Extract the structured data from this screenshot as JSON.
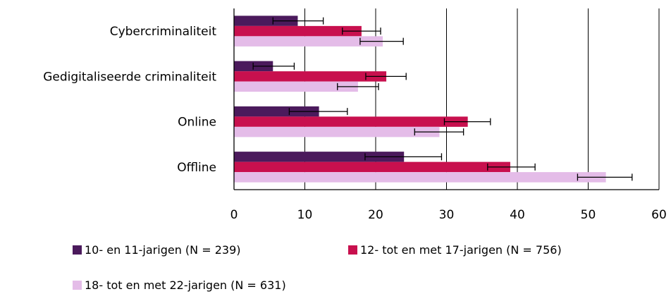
{
  "chart_data": {
    "type": "bar",
    "orientation": "horizontal",
    "categories": [
      "Cybercriminaliteit",
      "Gedigitaliseerde criminaliteit",
      "Online",
      "Offline"
    ],
    "series": [
      {
        "name": "10- en 11-jarigen (N = 239)",
        "color": "#4B1A5C",
        "values": [
          9,
          5.5,
          12,
          24
        ],
        "error_low": [
          5.5,
          2.7,
          7.8,
          18.5
        ],
        "error_high": [
          12.6,
          8.5,
          16,
          29.3
        ]
      },
      {
        "name": "12- tot en met 17-jarigen (N = 756)",
        "color": "#C8104E",
        "values": [
          18,
          21.5,
          33,
          39
        ],
        "error_low": [
          15.3,
          18.6,
          29.7,
          35.8
        ],
        "error_high": [
          20.7,
          24.3,
          36.2,
          42.5
        ]
      },
      {
        "name": "18- tot en met 22-jarigen (N = 631)",
        "color": "#E4BCE8",
        "values": [
          21,
          17.5,
          29,
          52.5
        ],
        "error_low": [
          17.8,
          14.6,
          25.5,
          48.5
        ],
        "error_high": [
          23.9,
          20.4,
          32.4,
          56.2
        ]
      }
    ],
    "xlim": [
      0,
      60
    ],
    "xticks": [
      "0",
      "10",
      "20",
      "30",
      "40",
      "50",
      "60"
    ],
    "grid": "vertical",
    "legend": "bottom"
  }
}
